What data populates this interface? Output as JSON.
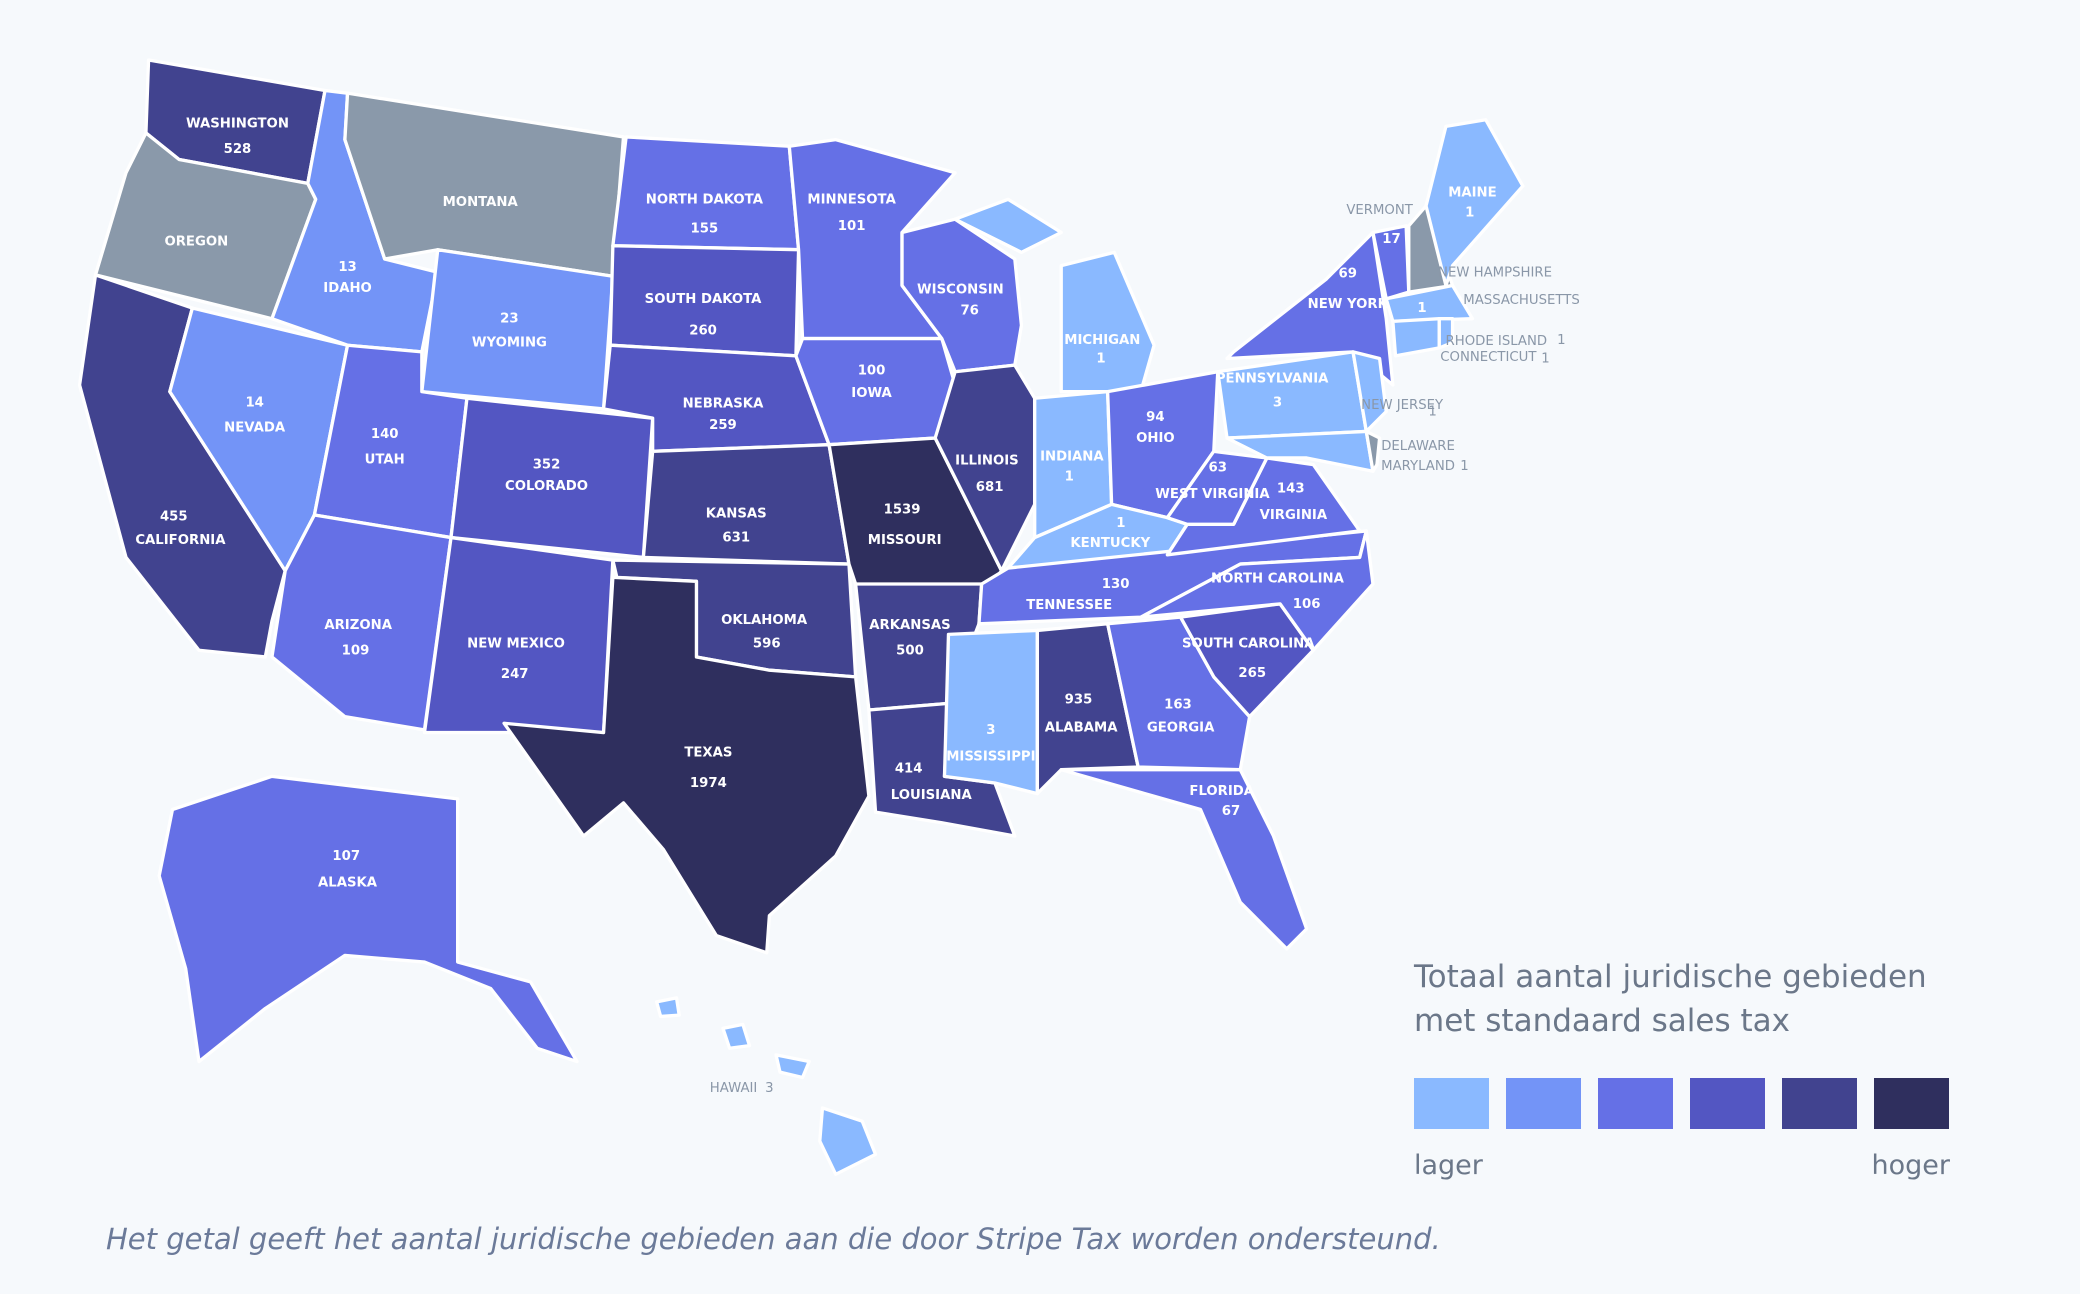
{
  "chart_data": {
    "type": "choropleth",
    "states": [
      {
        "name": "WASHINGTON",
        "value": 528,
        "color": "#41438f"
      },
      {
        "name": "OREGON",
        "value": null,
        "color": "#8a99aa"
      },
      {
        "name": "CALIFORNIA",
        "value": 455,
        "color": "#41438f"
      },
      {
        "name": "NEVADA",
        "value": 14,
        "color": "#7394f7"
      },
      {
        "name": "IDAHO",
        "value": 13,
        "color": "#7394f7"
      },
      {
        "name": "MONTANA",
        "value": null,
        "color": "#8a99aa"
      },
      {
        "name": "WYOMING",
        "value": 23,
        "color": "#7394f7"
      },
      {
        "name": "UTAH",
        "value": 140,
        "color": "#6570e6"
      },
      {
        "name": "COLORADO",
        "value": 352,
        "color": "#5356c2"
      },
      {
        "name": "ARIZONA",
        "value": 109,
        "color": "#6570e6"
      },
      {
        "name": "NEW MEXICO",
        "value": 247,
        "color": "#5356c2"
      },
      {
        "name": "NORTH DAKOTA",
        "value": 155,
        "color": "#6570e6"
      },
      {
        "name": "SOUTH DAKOTA",
        "value": 260,
        "color": "#5356c2"
      },
      {
        "name": "NEBRASKA",
        "value": 259,
        "color": "#5356c2"
      },
      {
        "name": "KANSAS",
        "value": 631,
        "color": "#41438f"
      },
      {
        "name": "OKLAHOMA",
        "value": 596,
        "color": "#41438f"
      },
      {
        "name": "TEXAS",
        "value": 1974,
        "color": "#2f2f5e"
      },
      {
        "name": "MINNESOTA",
        "value": 101,
        "color": "#6570e6"
      },
      {
        "name": "IOWA",
        "value": 100,
        "color": "#6570e6"
      },
      {
        "name": "MISSOURI",
        "value": 1539,
        "color": "#2f2f5e"
      },
      {
        "name": "ARKANSAS",
        "value": 500,
        "color": "#41438f"
      },
      {
        "name": "LOUISIANA",
        "value": 414,
        "color": "#41438f"
      },
      {
        "name": "WISCONSIN",
        "value": 76,
        "color": "#6570e6"
      },
      {
        "name": "ILLINOIS",
        "value": 681,
        "color": "#41438f"
      },
      {
        "name": "MICHIGAN",
        "value": 1,
        "color": "#8ab9ff"
      },
      {
        "name": "INDIANA",
        "value": 1,
        "color": "#8ab9ff"
      },
      {
        "name": "OHIO",
        "value": 94,
        "color": "#6570e6"
      },
      {
        "name": "KENTUCKY",
        "value": 1,
        "color": "#8ab9ff"
      },
      {
        "name": "TENNESSEE",
        "value": 130,
        "color": "#6570e6"
      },
      {
        "name": "MISSISSIPPI",
        "value": 3,
        "color": "#8ab9ff"
      },
      {
        "name": "ALABAMA",
        "value": 935,
        "color": "#41438f"
      },
      {
        "name": "GEORGIA",
        "value": 163,
        "color": "#6570e6"
      },
      {
        "name": "FLORIDA",
        "value": 67,
        "color": "#6570e6"
      },
      {
        "name": "SOUTH CAROLINA",
        "value": 265,
        "color": "#5356c2"
      },
      {
        "name": "NORTH CAROLINA",
        "value": 106,
        "color": "#6570e6"
      },
      {
        "name": "VIRGINIA",
        "value": 143,
        "color": "#6570e6"
      },
      {
        "name": "WEST VIRGINIA",
        "value": 63,
        "color": "#6570e6"
      },
      {
        "name": "PENNSYLVANIA",
        "value": 3,
        "color": "#8ab9ff"
      },
      {
        "name": "NEW YORK",
        "value": 69,
        "color": "#6570e6"
      },
      {
        "name": "NEW JERSEY",
        "value": 1,
        "color": "#8ab9ff"
      },
      {
        "name": "MARYLAND",
        "value": 1,
        "color": "#8ab9ff"
      },
      {
        "name": "DELAWARE",
        "value": null,
        "color": "#8a99aa"
      },
      {
        "name": "VERMONT",
        "value": 17,
        "color": "#6570e6"
      },
      {
        "name": "NEW HAMPSHIRE",
        "value": null,
        "color": "#8a99aa"
      },
      {
        "name": "MAINE",
        "value": 1,
        "color": "#8ab9ff"
      },
      {
        "name": "MASSACHUSETTS",
        "value": 1,
        "color": "#8ab9ff"
      },
      {
        "name": "CONNECTICUT",
        "value": 1,
        "color": "#8ab9ff"
      },
      {
        "name": "RHODE ISLAND",
        "value": 1,
        "color": "#8ab9ff"
      },
      {
        "name": "ALASKA",
        "value": 107,
        "color": "#6570e6"
      },
      {
        "name": "HAWAII",
        "value": 3,
        "color": "#8ab9ff"
      }
    ],
    "legend": {
      "title": "Totaal aantal juridische gebieden met standaard sales tax",
      "colors": [
        "#8ab9ff",
        "#7394f7",
        "#6570e6",
        "#5356c2",
        "#41438f",
        "#2f2f5e"
      ],
      "low": "lager",
      "high": "hoger"
    },
    "caption": "Het getal geeft het aantal juridische gebieden aan die door Stripe Tax worden ondersteund."
  }
}
